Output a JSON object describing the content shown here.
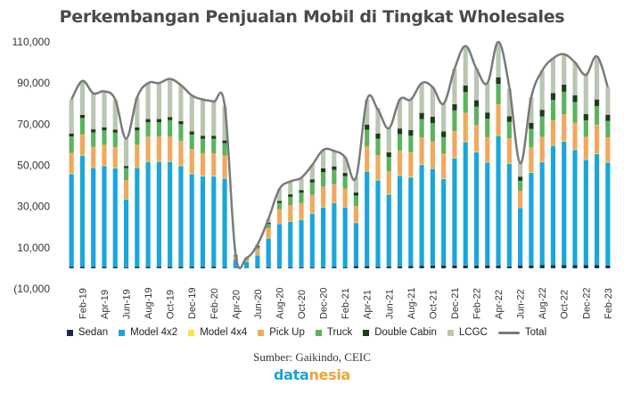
{
  "chart_data": {
    "type": "bar",
    "title": "Perkembangan Penjualan Mobil di Tingkat Wholesales",
    "stacked": true,
    "ylim": [
      -10000,
      110000
    ],
    "yticks": [
      "(10,000",
      "10,000",
      "30,000",
      "50,000",
      "70,000",
      "90,000",
      "110,000"
    ],
    "ytick_values": [
      -10000,
      10000,
      30000,
      50000,
      70000,
      90000,
      110000
    ],
    "grid": false,
    "legend_position": "bottom",
    "x_tick_labels": [
      "Feb-19",
      "Apr-19",
      "Jun-19",
      "Aug-19",
      "Oct-19",
      "Dec-19",
      "Feb-20",
      "Apr-20",
      "Jun-20",
      "Aug-20",
      "Oct-20",
      "Dec-20",
      "Feb-21",
      "Apr-21",
      "Jun-21",
      "Aug-21",
      "Oct-21",
      "Dec-21",
      "Feb-22",
      "Apr-22",
      "Jun-22",
      "Aug-22",
      "Oct-22",
      "Dec-22",
      "Feb-23"
    ],
    "categories": [
      "Jan-19",
      "Feb-19",
      "Mar-19",
      "Apr-19",
      "May-19",
      "Jun-19",
      "Jul-19",
      "Aug-19",
      "Sep-19",
      "Oct-19",
      "Nov-19",
      "Dec-19",
      "Jan-20",
      "Feb-20",
      "Mar-20",
      "Apr-20",
      "May-20",
      "Jun-20",
      "Jul-20",
      "Aug-20",
      "Sep-20",
      "Oct-20",
      "Nov-20",
      "Dec-20",
      "Jan-21",
      "Feb-21",
      "Mar-21",
      "Apr-21",
      "May-21",
      "Jun-21",
      "Jul-21",
      "Aug-21",
      "Sep-21",
      "Oct-21",
      "Nov-21",
      "Dec-21",
      "Jan-22",
      "Feb-22",
      "Mar-22",
      "Apr-22",
      "May-22",
      "Jun-22",
      "Jul-22",
      "Aug-22",
      "Sep-22",
      "Oct-22",
      "Nov-22",
      "Dec-22",
      "Jan-23",
      "Feb-23"
    ],
    "series": [
      {
        "name": "Sedan",
        "color": "#1b2a4a",
        "values": [
          700,
          700,
          700,
          700,
          600,
          500,
          700,
          700,
          700,
          700,
          700,
          700,
          600,
          600,
          500,
          100,
          100,
          300,
          400,
          500,
          500,
          500,
          500,
          500,
          600,
          500,
          1000,
          1000,
          700,
          800,
          900,
          1100,
          1200,
          1300,
          1400,
          1400,
          1300,
          1300,
          1400,
          1300,
          800,
          1300,
          1400,
          1500,
          1500,
          1500,
          1500,
          1600,
          1500,
          1300
        ]
      },
      {
        "name": "Model 4x2",
        "color": "#1aa6dc",
        "values": [
          45000,
          54000,
          48000,
          49000,
          48000,
          33000,
          48000,
          51000,
          51000,
          51000,
          49000,
          45000,
          44000,
          44000,
          43000,
          4000,
          3000,
          6000,
          14000,
          21000,
          22000,
          23000,
          26000,
          29000,
          31000,
          29000,
          21000,
          46000,
          42000,
          35000,
          44000,
          43000,
          49000,
          47000,
          42000,
          52000,
          60000,
          55000,
          50000,
          63000,
          50000,
          28000,
          45000,
          50000,
          58000,
          60000,
          56000,
          51000,
          54000,
          50000
        ]
      },
      {
        "name": "Model 4x4",
        "color": "#f5e642",
        "values": [
          300,
          300,
          300,
          300,
          300,
          200,
          300,
          300,
          300,
          300,
          300,
          300,
          300,
          300,
          300,
          50,
          50,
          100,
          100,
          200,
          200,
          200,
          200,
          200,
          200,
          200,
          300,
          300,
          300,
          300,
          300,
          300,
          300,
          300,
          300,
          300,
          300,
          300,
          300,
          300,
          300,
          200,
          300,
          300,
          300,
          300,
          300,
          300,
          300,
          300
        ]
      },
      {
        "name": "Pick Up",
        "color": "#f2a85c",
        "values": [
          10000,
          10000,
          10000,
          10000,
          10000,
          9000,
          11000,
          12000,
          12000,
          12000,
          12000,
          12000,
          11000,
          11000,
          11000,
          1500,
          1000,
          3000,
          5000,
          7000,
          8000,
          8000,
          9000,
          10000,
          9000,
          9000,
          8000,
          12000,
          12000,
          11000,
          12000,
          12000,
          13000,
          13000,
          12000,
          13000,
          14000,
          13000,
          12000,
          15000,
          12000,
          8000,
          12000,
          12000,
          12000,
          13000,
          13000,
          11000,
          14000,
          12000
        ]
      },
      {
        "name": "Truck",
        "color": "#5cb35e",
        "values": [
          8000,
          8000,
          7000,
          7000,
          7000,
          6000,
          7000,
          7000,
          7000,
          8000,
          8000,
          7000,
          7000,
          7000,
          6000,
          500,
          500,
          1000,
          2000,
          3000,
          4000,
          5000,
          6000,
          7000,
          7000,
          6000,
          5000,
          8000,
          8000,
          7000,
          8000,
          8000,
          9000,
          9000,
          8000,
          10000,
          10000,
          9000,
          9000,
          10000,
          8000,
          5000,
          9000,
          10000,
          10000,
          11000,
          10000,
          8000,
          9000,
          8000
        ]
      },
      {
        "name": "Double Cabin",
        "color": "#1f3a1f",
        "values": [
          1500,
          1500,
          1500,
          1500,
          1500,
          1000,
          1500,
          1500,
          1500,
          1500,
          1500,
          1500,
          1400,
          1400,
          1300,
          200,
          200,
          400,
          600,
          1000,
          1200,
          1300,
          1500,
          1800,
          1700,
          1600,
          1500,
          2500,
          2500,
          2200,
          2700,
          2800,
          3000,
          3000,
          2800,
          3000,
          3200,
          3000,
          3000,
          3200,
          2800,
          2000,
          3000,
          3200,
          3300,
          3400,
          3300,
          3000,
          3200,
          3000
        ]
      },
      {
        "name": "LCGC",
        "color": "#b9c6b1",
        "values": [
          16500,
          16500,
          17500,
          17500,
          14600,
          13100,
          14500,
          17500,
          17500,
          18500,
          17500,
          17500,
          18000,
          17000,
          16500,
          300,
          200,
          700,
          1900,
          5800,
          6100,
          6000,
          7000,
          9000,
          7500,
          7700,
          7200,
          12200,
          12500,
          11700,
          14100,
          14800,
          14500,
          14400,
          13500,
          17300,
          19200,
          15400,
          14300,
          17200,
          13400,
          6500,
          12300,
          19000,
          16900,
          14800,
          15900,
          19100,
          21000,
          13400
        ]
      }
    ],
    "total": {
      "name": "Total",
      "color": "#7a7a7a",
      "values": [
        82000,
        91000,
        85000,
        86000,
        82000,
        63000,
        83000,
        90000,
        90000,
        92000,
        89000,
        84000,
        82000,
        81000,
        79000,
        6650,
        5050,
        11500,
        24000,
        38500,
        42200,
        44000,
        50200,
        57500,
        57000,
        54000,
        44000,
        82000,
        77000,
        68000,
        82000,
        82000,
        90000,
        88000,
        80000,
        97000,
        108000,
        97000,
        90000,
        110000,
        88000,
        51000,
        83000,
        96000,
        102000,
        104000,
        100000,
        94000,
        103000,
        88000
      ]
    }
  },
  "legend": {
    "items": [
      "Sedan",
      "Model 4x2",
      "Model 4x4",
      "Pick Up",
      "Truck",
      "Double Cabin",
      "LCGC",
      "Total"
    ]
  },
  "source": "Sumber: Gaikindo, CEIC",
  "brand": {
    "part1": "data",
    "part2": "nesia"
  }
}
